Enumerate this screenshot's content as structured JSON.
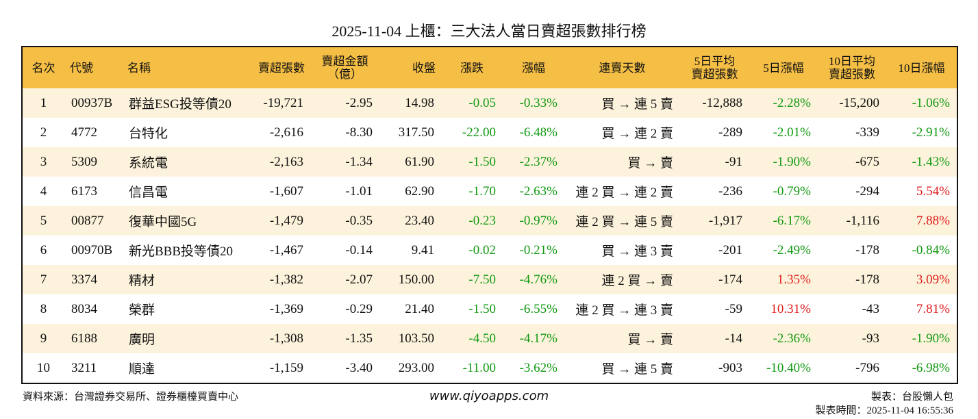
{
  "title": "2025-11-04 上櫃：三大法人當日賣超張數排行榜",
  "table": {
    "header": [
      "名次",
      "代號",
      "名稱",
      "賣超張數",
      "賣超金額\n（億）",
      "收盤",
      "漲跌",
      "漲幅",
      "連賣天數",
      "5日平均\n賣超張數",
      "5日漲幅",
      "10日平均\n賣超張數",
      "10日漲幅"
    ],
    "rows": [
      [
        "1",
        "00937B",
        "群益ESG投等債20",
        "-19,721",
        "-2.95",
        "14.98",
        "-0.05",
        "-0.33%",
        "買 → 連 5 賣",
        "-12,888",
        "-2.28%",
        "-15,200",
        "-1.06%"
      ],
      [
        "2",
        "4772",
        "台特化",
        "-2,616",
        "-8.30",
        "317.50",
        "-22.00",
        "-6.48%",
        "買 → 連 2 賣",
        "-289",
        "-2.01%",
        "-339",
        "-2.91%"
      ],
      [
        "3",
        "5309",
        "系統電",
        "-2,163",
        "-1.34",
        "61.90",
        "-1.50",
        "-2.37%",
        "買 → 賣",
        "-91",
        "-1.90%",
        "-675",
        "-1.43%"
      ],
      [
        "4",
        "6173",
        "信昌電",
        "-1,607",
        "-1.01",
        "62.90",
        "-1.70",
        "-2.63%",
        "連 2 買 → 連 2 賣",
        "-236",
        "-0.79%",
        "-294",
        "5.54%"
      ],
      [
        "5",
        "00877",
        "復華中國5G",
        "-1,479",
        "-0.35",
        "23.40",
        "-0.23",
        "-0.97%",
        "連 2 買 → 連 5 賣",
        "-1,917",
        "-6.17%",
        "-1,116",
        "7.88%"
      ],
      [
        "6",
        "00970B",
        "新光BBB投等債20",
        "-1,467",
        "-0.14",
        "9.41",
        "-0.02",
        "-0.21%",
        "買 → 連 3 賣",
        "-201",
        "-2.49%",
        "-178",
        "-0.84%"
      ],
      [
        "7",
        "3374",
        "精材",
        "-1,382",
        "-2.07",
        "150.00",
        "-7.50",
        "-4.76%",
        "連 2 買 → 賣",
        "-174",
        "1.35%",
        "-178",
        "3.09%"
      ],
      [
        "8",
        "8034",
        "榮群",
        "-1,369",
        "-0.29",
        "21.40",
        "-1.50",
        "-6.55%",
        "連 2 買 → 連 3 賣",
        "-59",
        "10.31%",
        "-43",
        "7.81%"
      ],
      [
        "9",
        "6188",
        "廣明",
        "-1,308",
        "-1.35",
        "103.50",
        "-4.50",
        "-4.17%",
        "買 → 賣",
        "-14",
        "-2.36%",
        "-93",
        "-1.90%"
      ],
      [
        "10",
        "3211",
        "順達",
        "-1,159",
        "-3.40",
        "293.00",
        "-11.00",
        "-3.62%",
        "買 → 連 5 賣",
        "-903",
        "-10.40%",
        "-796",
        "-6.98%"
      ]
    ]
  },
  "footer": {
    "source": "資料來源：台灣證券交易所、證券櫃檯買賣中心",
    "website": "www.qiyoapps.com",
    "maker": "製表：台股懶人包",
    "time": "製表時間：2025-11-04 16:55:36"
  }
}
